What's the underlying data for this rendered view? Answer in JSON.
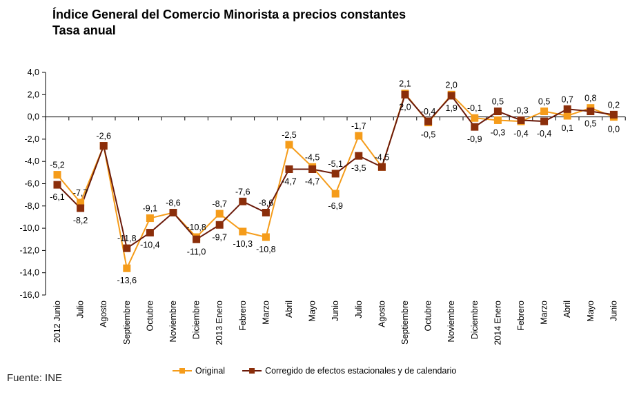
{
  "chart_data": {
    "type": "line",
    "title": "Índice General del Comercio Minorista a precios constantes",
    "subtitle": "Tasa anual",
    "source": "Fuente: INE",
    "xlabel": "",
    "ylabel": "",
    "ylim": [
      -16,
      4
    ],
    "yticks": [
      4,
      2,
      0,
      -2,
      -4,
      -6,
      -8,
      -10,
      -12,
      -14,
      -16
    ],
    "grid": false,
    "legend": "bottom",
    "categories": [
      "2012 Junio",
      "Julio",
      "Agosto",
      "Septiembre",
      "Octubre",
      "Noviembre",
      "Diciembre",
      "2013 Enero",
      "Febrero",
      "Marzo",
      "Abril",
      "Mayo",
      "Junio",
      "Julio",
      "Agosto",
      "Septiembre",
      "Octubre",
      "Noviembre",
      "Diciembre",
      "2014 Enero",
      "Febrero",
      "Marzo",
      "Abril",
      "Mayo",
      "Junio"
    ],
    "series": [
      {
        "name": "Original",
        "color": "#F59C1A",
        "values": [
          -5.2,
          -7.7,
          -2.6,
          -13.6,
          -9.1,
          -8.6,
          -10.8,
          -8.7,
          -10.3,
          -10.8,
          -2.5,
          -4.5,
          -6.9,
          -1.7,
          -4.5,
          2.1,
          -0.5,
          2.0,
          -0.1,
          -0.3,
          -0.4,
          0.5,
          0.1,
          0.8,
          0.0
        ]
      },
      {
        "name": "Corregido de efectos estacionales y de calendario",
        "color": "#8B2E0A",
        "line_color": "#6B1A0A",
        "values": [
          -6.1,
          -8.2,
          -2.6,
          -11.8,
          -10.4,
          -8.6,
          -11.0,
          -9.7,
          -7.6,
          -8.6,
          -4.7,
          -4.7,
          -5.1,
          -3.5,
          -4.5,
          2.0,
          -0.4,
          1.9,
          -0.9,
          0.5,
          -0.3,
          -0.4,
          0.7,
          0.5,
          0.2
        ]
      }
    ]
  }
}
